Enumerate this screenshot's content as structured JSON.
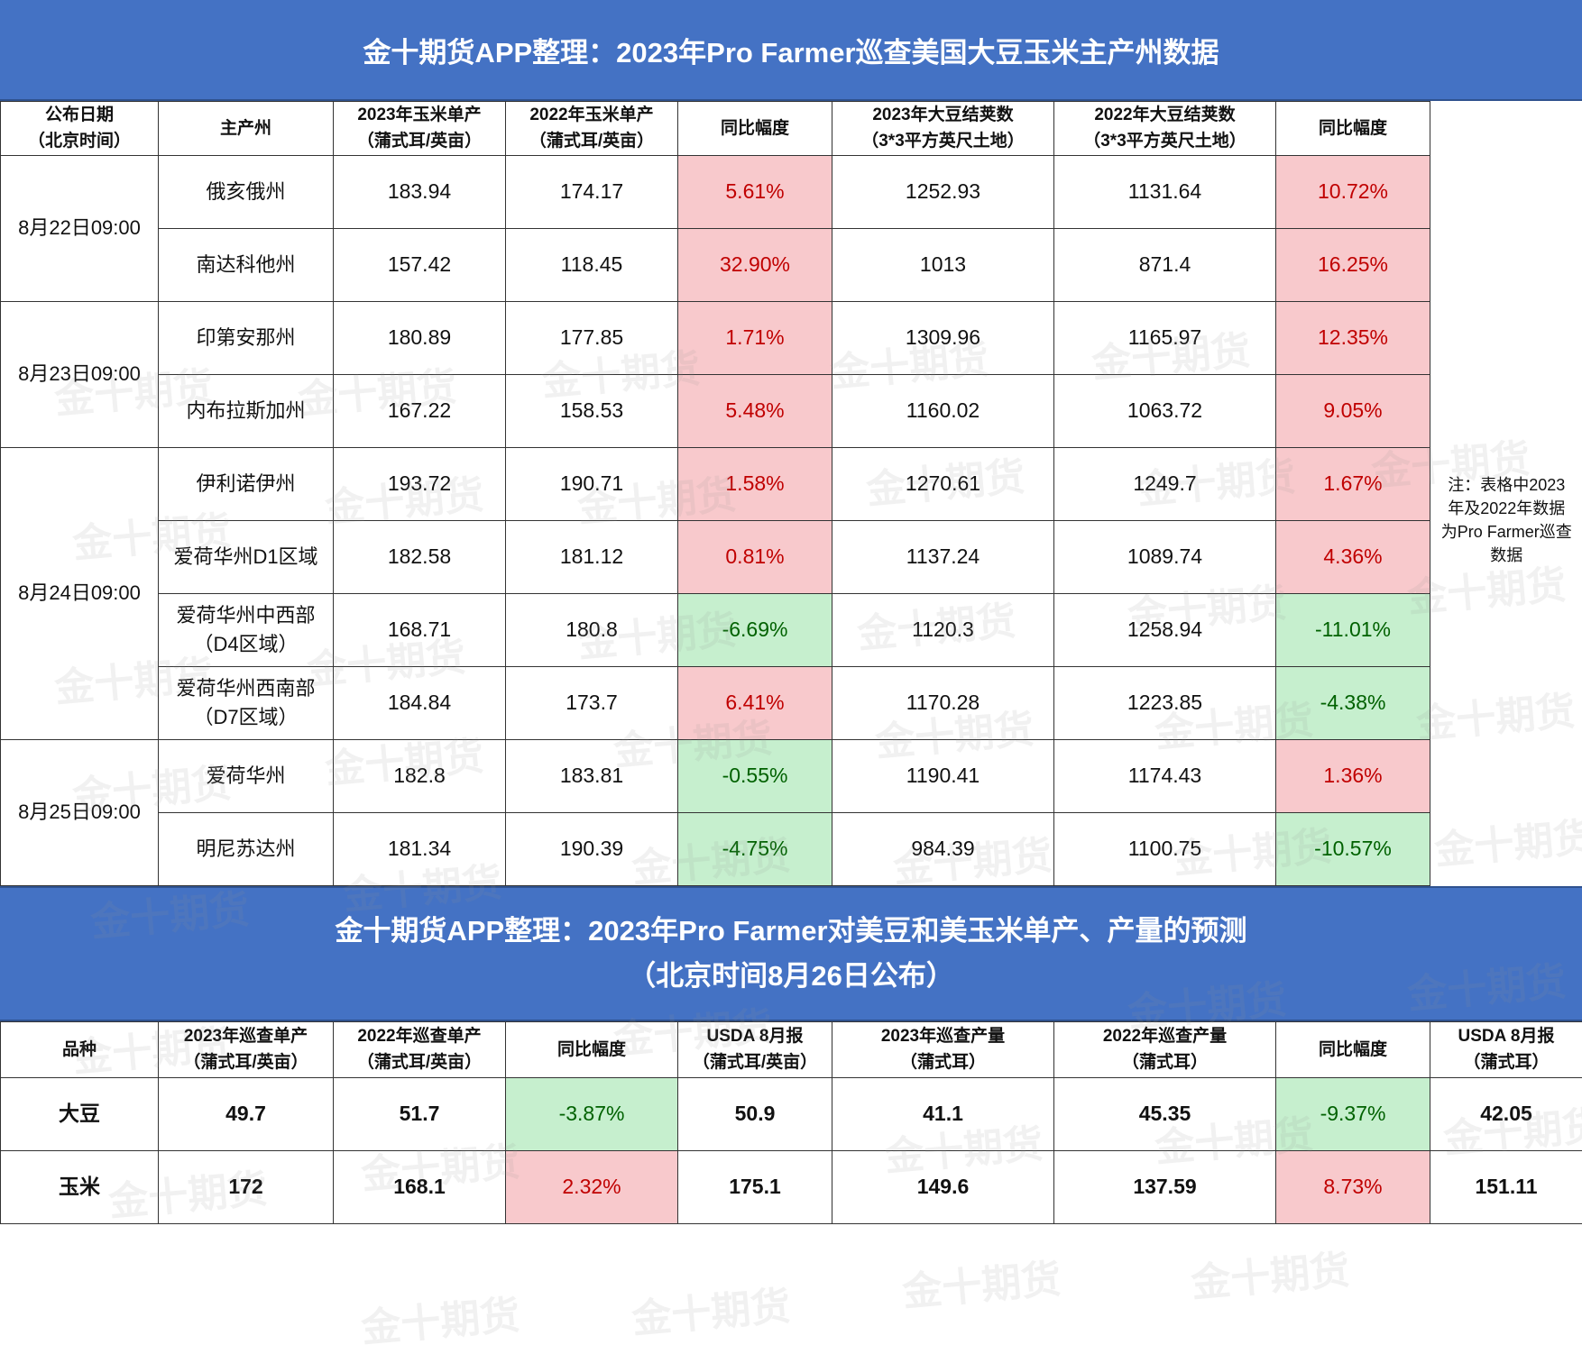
{
  "title1": "金十期货APP整理：2023年Pro Farmer巡查美国大豆玉米主产州数据",
  "table1": {
    "headers": {
      "date": [
        "公布日期",
        "（北京时间）"
      ],
      "state": "主产州",
      "corn2023": [
        "2023年玉米单产",
        "（蒲式耳/英亩）"
      ],
      "corn2022": [
        "2022年玉米单产",
        "（蒲式耳/英亩）"
      ],
      "corn_yoy": "同比幅度",
      "soy2023": [
        "2023年大豆结荚数",
        "（3*3平方英尺土地）"
      ],
      "soy2022": [
        "2022年大豆结荚数",
        "（3*3平方英尺土地）"
      ],
      "soy_yoy": "同比幅度"
    },
    "dates": [
      "8月22日09:00",
      "8月23日09:00",
      "8月24日09:00",
      "8月25日09:00"
    ],
    "rows": [
      {
        "state": [
          "俄亥俄州"
        ],
        "corn2023": "183.94",
        "corn2022": "174.17",
        "corn_yoy": "5.61%",
        "corn_sign": "pos",
        "soy2023": "1252.93",
        "soy2022": "1131.64",
        "soy_yoy": "10.72%",
        "soy_sign": "pos"
      },
      {
        "state": [
          "南达科他州"
        ],
        "corn2023": "157.42",
        "corn2022": "118.45",
        "corn_yoy": "32.90%",
        "corn_sign": "pos",
        "soy2023": "1013",
        "soy2022": "871.4",
        "soy_yoy": "16.25%",
        "soy_sign": "pos"
      },
      {
        "state": [
          "印第安那州"
        ],
        "corn2023": "180.89",
        "corn2022": "177.85",
        "corn_yoy": "1.71%",
        "corn_sign": "pos",
        "soy2023": "1309.96",
        "soy2022": "1165.97",
        "soy_yoy": "12.35%",
        "soy_sign": "pos"
      },
      {
        "state": [
          "内布拉斯加州"
        ],
        "corn2023": "167.22",
        "corn2022": "158.53",
        "corn_yoy": "5.48%",
        "corn_sign": "pos",
        "soy2023": "1160.02",
        "soy2022": "1063.72",
        "soy_yoy": "9.05%",
        "soy_sign": "pos"
      },
      {
        "state": [
          "伊利诺伊州"
        ],
        "corn2023": "193.72",
        "corn2022": "190.71",
        "corn_yoy": "1.58%",
        "corn_sign": "pos",
        "soy2023": "1270.61",
        "soy2022": "1249.7",
        "soy_yoy": "1.67%",
        "soy_sign": "pos"
      },
      {
        "state": [
          "爱荷华州D1区域"
        ],
        "corn2023": "182.58",
        "corn2022": "181.12",
        "corn_yoy": "0.81%",
        "corn_sign": "pos",
        "soy2023": "1137.24",
        "soy2022": "1089.74",
        "soy_yoy": "4.36%",
        "soy_sign": "pos"
      },
      {
        "state": [
          "爱荷华州中西部",
          "（D4区域）"
        ],
        "corn2023": "168.71",
        "corn2022": "180.8",
        "corn_yoy": "-6.69%",
        "corn_sign": "neg",
        "soy2023": "1120.3",
        "soy2022": "1258.94",
        "soy_yoy": "-11.01%",
        "soy_sign": "neg"
      },
      {
        "state": [
          "爱荷华州西南部",
          "（D7区域）"
        ],
        "corn2023": "184.84",
        "corn2022": "173.7",
        "corn_yoy": "6.41%",
        "corn_sign": "pos",
        "soy2023": "1170.28",
        "soy2022": "1223.85",
        "soy_yoy": "-4.38%",
        "soy_sign": "neg"
      },
      {
        "state": [
          "爱荷华州"
        ],
        "corn2023": "182.8",
        "corn2022": "183.81",
        "corn_yoy": "-0.55%",
        "corn_sign": "neg",
        "soy2023": "1190.41",
        "soy2022": "1174.43",
        "soy_yoy": "1.36%",
        "soy_sign": "pos"
      },
      {
        "state": [
          "明尼苏达州"
        ],
        "corn2023": "181.34",
        "corn2022": "190.39",
        "corn_yoy": "-4.75%",
        "corn_sign": "neg",
        "soy2023": "984.39",
        "soy2022": "1100.75",
        "soy_yoy": "-10.57%",
        "soy_sign": "neg"
      }
    ],
    "note": [
      "注：表格中2023",
      "年及2022年数据",
      "为Pro Farmer巡查",
      "数据"
    ]
  },
  "title2": [
    "金十期货APP整理：2023年Pro Farmer对美豆和美玉米单产、产量的预测",
    "（北京时间8月26日公布）"
  ],
  "table2": {
    "headers": {
      "variety": "品种",
      "y2023": [
        "2023年巡查单产",
        "（蒲式耳/英亩）"
      ],
      "y2022": [
        "2022年巡查单产",
        "（蒲式耳/英亩）"
      ],
      "y_yoy": "同比幅度",
      "usda_y": [
        "USDA 8月报",
        "（蒲式耳/英亩）"
      ],
      "p2023": [
        "2023年巡查产量",
        "（蒲式耳）"
      ],
      "p2022": [
        "2022年巡查产量",
        "（蒲式耳）"
      ],
      "p_yoy": "同比幅度",
      "usda_p": [
        "USDA 8月报",
        "（蒲式耳）"
      ]
    },
    "rows": [
      {
        "variety": "大豆",
        "y2023": "49.7",
        "y2022": "51.7",
        "y_yoy": "-3.87%",
        "y_sign": "neg",
        "usda_y": "50.9",
        "p2023": "41.1",
        "p2022": "45.35",
        "p_yoy": "-9.37%",
        "p_sign": "neg",
        "usda_p": "42.05"
      },
      {
        "variety": "玉米",
        "y2023": "172",
        "y2022": "168.1",
        "y_yoy": "2.32%",
        "y_sign": "pos",
        "usda_y": "175.1",
        "p2023": "149.6",
        "p2022": "137.59",
        "p_yoy": "8.73%",
        "p_sign": "pos",
        "usda_p": "151.11"
      }
    ]
  },
  "watermark": "金十期货",
  "colors": {
    "banner": "#4472c4",
    "positive_bg": "#f8c9cc",
    "positive_text": "#c00000",
    "negative_bg": "#c6efce",
    "negative_text": "#006100"
  }
}
